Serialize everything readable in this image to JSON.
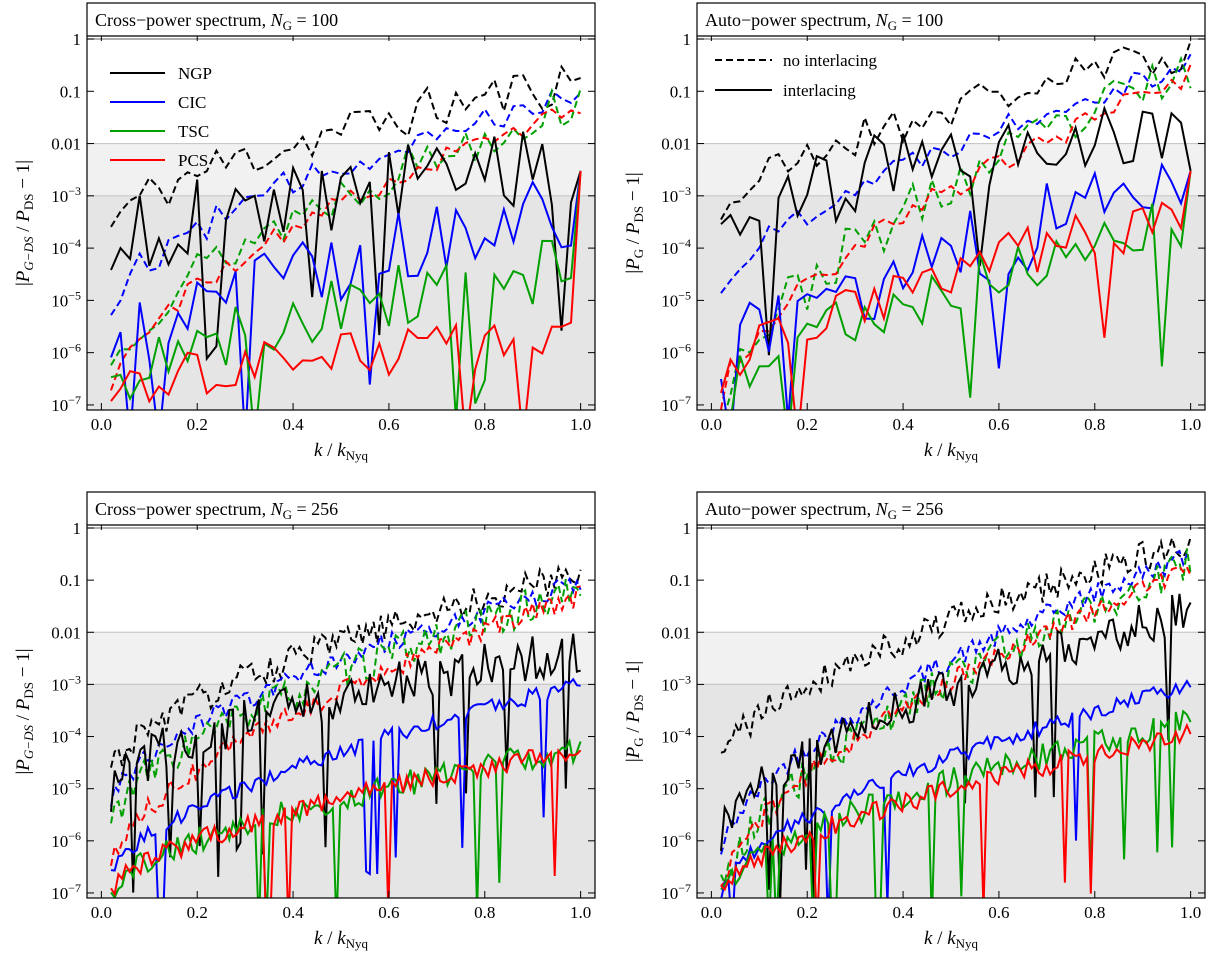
{
  "figure": {
    "legend_interpolation": {
      "entries": [
        {
          "label": "NGP",
          "color": "#000000"
        },
        {
          "label": "CIC",
          "color": "#0000ff"
        },
        {
          "label": "TSC",
          "color": "#00a000"
        },
        {
          "label": "PCS",
          "color": "#ff0000"
        }
      ]
    },
    "legend_interlacing": {
      "entries": [
        {
          "label": "no interlacing",
          "style": "dashed"
        },
        {
          "label": "interlacing",
          "style": "solid"
        }
      ]
    }
  },
  "chart_data": [
    {
      "type": "line",
      "panel": "top-left",
      "title": "Cross−power spectrum, N_G = 100",
      "title_parts": {
        "prefix": "Cross−power spectrum, ",
        "var": "N",
        "sub": "G",
        "suffix": " = 100"
      },
      "xlabel": "k / k_Nyq",
      "ylabel": "|P_G−DS / P_DS − 1|",
      "yscale": "log",
      "xlim": [
        -0.03,
        1.03
      ],
      "ylim": [
        8e-08,
        5
      ],
      "xticks": [
        "0.0",
        "0.2",
        "0.4",
        "0.6",
        "0.8",
        "1.0"
      ],
      "yticks": [
        "1",
        "0.1",
        "0.01",
        "10^-3",
        "10^-4",
        "10^-5",
        "10^-6",
        "10^-7"
      ],
      "bands": [
        {
          "from": 0.001,
          "to": 0.01,
          "color": "#f1f1f1"
        },
        {
          "from": 8e-08,
          "to": 0.001,
          "color": "#e5e5e5"
        }
      ],
      "reference_lines": [
        1,
        0.01,
        0.001
      ],
      "n_points": 50,
      "series": [
        {
          "color": "#000000",
          "dashed": true,
          "start": 0.00025,
          "end": 0.17,
          "noise": 0.9,
          "seed": 11
        },
        {
          "color": "#0000ff",
          "dashed": true,
          "start": 7e-06,
          "end": 0.11,
          "noise": 0.6,
          "seed": 12
        },
        {
          "color": "#00a000",
          "dashed": true,
          "start": 5e-07,
          "end": 0.065,
          "noise": 0.9,
          "seed": 13
        },
        {
          "color": "#ff0000",
          "dashed": true,
          "start": 2e-07,
          "end": 0.055,
          "noise": 0.4,
          "seed": 14
        },
        {
          "color": "#000000",
          "dashed": false,
          "start": 0.0001,
          "end": 0.004,
          "noise": 1.6,
          "seed": 15
        },
        {
          "color": "#0000ff",
          "dashed": false,
          "start": 5e-07,
          "end": 0.0005,
          "noise": 1.6,
          "seed": 16
        },
        {
          "color": "#00a000",
          "dashed": false,
          "start": 2e-07,
          "end": 5e-05,
          "noise": 1.3,
          "seed": 17
        },
        {
          "color": "#ff0000",
          "dashed": false,
          "start": 1.5e-07,
          "end": 2e-06,
          "noise": 1.0,
          "seed": 18
        }
      ]
    },
    {
      "type": "line",
      "panel": "top-right",
      "title": "Auto−power spectrum, N_G = 100",
      "title_parts": {
        "prefix": "Auto−power spectrum, ",
        "var": "N",
        "sub": "G",
        "suffix": " = 100"
      },
      "xlabel": "k / k_Nyq",
      "ylabel": "|P_G / P_DS − 1|",
      "yscale": "log",
      "xlim": [
        -0.03,
        1.03
      ],
      "ylim": [
        8e-08,
        5
      ],
      "xticks": [
        "0.0",
        "0.2",
        "0.4",
        "0.6",
        "0.8",
        "1.0"
      ],
      "yticks": [
        "1",
        "0.1",
        "0.01",
        "10^-3",
        "10^-4",
        "10^-5",
        "10^-6",
        "10^-7"
      ],
      "bands": [
        {
          "from": 0.001,
          "to": 0.01,
          "color": "#f1f1f1"
        },
        {
          "from": 8e-08,
          "to": 0.001,
          "color": "#e5e5e5"
        }
      ],
      "reference_lines": [
        1,
        0.01,
        0.001
      ],
      "n_points": 50,
      "series": [
        {
          "color": "#000000",
          "dashed": true,
          "start": 0.0004,
          "end": 0.6,
          "noise": 0.8,
          "seed": 21
        },
        {
          "color": "#0000ff",
          "dashed": true,
          "start": 1.2e-05,
          "end": 0.35,
          "noise": 0.5,
          "seed": 22
        },
        {
          "color": "#00a000",
          "dashed": true,
          "start": 1e-07,
          "end": 0.25,
          "noise": 1.0,
          "seed": 23
        },
        {
          "color": "#ff0000",
          "dashed": true,
          "start": 1e-07,
          "end": 0.2,
          "noise": 0.5,
          "seed": 24
        },
        {
          "color": "#000000",
          "dashed": false,
          "start": 0.0002,
          "end": 0.03,
          "noise": 1.6,
          "seed": 25
        },
        {
          "color": "#0000ff",
          "dashed": false,
          "start": 3e-07,
          "end": 0.0015,
          "noise": 1.6,
          "seed": 26
        },
        {
          "color": "#00a000",
          "dashed": false,
          "start": 1e-07,
          "end": 0.0003,
          "noise": 1.3,
          "seed": 27
        },
        {
          "color": "#ff0000",
          "dashed": false,
          "start": 2e-07,
          "end": 0.0005,
          "noise": 1.0,
          "seed": 28
        }
      ]
    },
    {
      "type": "line",
      "panel": "bottom-left",
      "title": "Cross−power spectrum, N_G = 256",
      "title_parts": {
        "prefix": "Cross−power spectrum, ",
        "var": "N",
        "sub": "G",
        "suffix": " = 256"
      },
      "xlabel": "k / k_Nyq",
      "ylabel": "|P_G−DS / P_DS − 1|",
      "yscale": "log",
      "xlim": [
        -0.03,
        1.03
      ],
      "ylim": [
        8e-08,
        5
      ],
      "xticks": [
        "0.0",
        "0.2",
        "0.4",
        "0.6",
        "0.8",
        "1.0"
      ],
      "yticks": [
        "1",
        "0.1",
        "0.01",
        "10^-3",
        "10^-4",
        "10^-5",
        "10^-6",
        "10^-7"
      ],
      "bands": [
        {
          "from": 0.001,
          "to": 0.01,
          "color": "#f1f1f1"
        },
        {
          "from": 8e-08,
          "to": 0.001,
          "color": "#e5e5e5"
        }
      ],
      "reference_lines": [
        1,
        0.01,
        0.001
      ],
      "n_points": 128,
      "series": [
        {
          "color": "#000000",
          "dashed": true,
          "start": 2e-05,
          "end": 0.14,
          "noise": 0.6,
          "seed": 31
        },
        {
          "color": "#0000ff",
          "dashed": true,
          "start": 5e-06,
          "end": 0.09,
          "noise": 0.4,
          "seed": 32
        },
        {
          "color": "#00a000",
          "dashed": true,
          "start": 2e-06,
          "end": 0.06,
          "noise": 0.7,
          "seed": 33
        },
        {
          "color": "#ff0000",
          "dashed": true,
          "start": 3e-07,
          "end": 0.05,
          "noise": 0.4,
          "seed": 34
        },
        {
          "color": "#000000",
          "dashed": false,
          "start": 1e-05,
          "end": 0.005,
          "noise": 0.9,
          "seed": 35
        },
        {
          "color": "#0000ff",
          "dashed": false,
          "start": 2e-07,
          "end": 0.001,
          "noise": 0.3,
          "seed": 36
        },
        {
          "color": "#00a000",
          "dashed": false,
          "start": 1e-07,
          "end": 6e-05,
          "noise": 0.5,
          "seed": 37
        },
        {
          "color": "#ff0000",
          "dashed": false,
          "start": 1e-07,
          "end": 6e-05,
          "noise": 0.4,
          "seed": 38
        }
      ]
    },
    {
      "type": "line",
      "panel": "bottom-right",
      "title": "Auto−power spectrum, N_G = 256",
      "title_parts": {
        "prefix": "Auto−power spectrum, ",
        "var": "N",
        "sub": "G",
        "suffix": " = 256"
      },
      "xlabel": "k / k_Nyq",
      "ylabel": "|P_G / P_DS − 1|",
      "yscale": "log",
      "xlim": [
        -0.03,
        1.03
      ],
      "ylim": [
        8e-08,
        5
      ],
      "xticks": [
        "0.0",
        "0.2",
        "0.4",
        "0.6",
        "0.8",
        "1.0"
      ],
      "yticks": [
        "1",
        "0.1",
        "0.01",
        "10^-3",
        "10^-4",
        "10^-5",
        "10^-6",
        "10^-7"
      ],
      "bands": [
        {
          "from": 0.001,
          "to": 0.01,
          "color": "#f1f1f1"
        },
        {
          "from": 8e-08,
          "to": 0.001,
          "color": "#e5e5e5"
        }
      ],
      "reference_lines": [
        1,
        0.01,
        0.001
      ],
      "n_points": 128,
      "series": [
        {
          "color": "#000000",
          "dashed": true,
          "start": 3e-05,
          "end": 0.5,
          "noise": 0.6,
          "seed": 41
        },
        {
          "color": "#0000ff",
          "dashed": true,
          "start": 5e-07,
          "end": 0.3,
          "noise": 0.4,
          "seed": 42
        },
        {
          "color": "#00a000",
          "dashed": true,
          "start": 1e-07,
          "end": 0.2,
          "noise": 0.7,
          "seed": 43
        },
        {
          "color": "#ff0000",
          "dashed": true,
          "start": 1e-07,
          "end": 0.17,
          "noise": 0.4,
          "seed": 44
        },
        {
          "color": "#000000",
          "dashed": false,
          "start": 1.5e-06,
          "end": 0.027,
          "noise": 0.8,
          "seed": 45
        },
        {
          "color": "#0000ff",
          "dashed": false,
          "start": 1e-07,
          "end": 0.001,
          "noise": 0.3,
          "seed": 46
        },
        {
          "color": "#00a000",
          "dashed": false,
          "start": 1e-07,
          "end": 0.0002,
          "noise": 0.5,
          "seed": 47
        },
        {
          "color": "#ff0000",
          "dashed": false,
          "start": 1e-07,
          "end": 0.00011,
          "noise": 0.4,
          "seed": 48
        }
      ]
    }
  ]
}
